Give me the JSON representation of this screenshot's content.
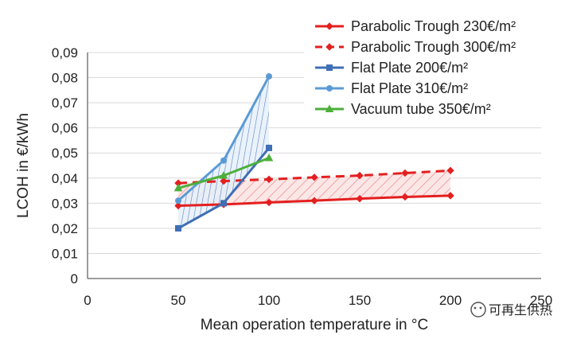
{
  "chart_data": {
    "type": "line",
    "title": "",
    "xlabel": "Mean operation temperature in °C",
    "ylabel": "LCOH in €/kWh",
    "xlim": [
      0,
      250
    ],
    "ylim": [
      0,
      0.09
    ],
    "x_ticks": [
      "0",
      "50",
      "100",
      "150",
      "200",
      "250"
    ],
    "y_ticks": [
      "0",
      "0,01",
      "0,02",
      "0,03",
      "0,04",
      "0,05",
      "0,06",
      "0,07",
      "0,08",
      "0,09"
    ],
    "grid": true,
    "legend_position": "top-right",
    "series": [
      {
        "name": "Parabolic Trough 230€/m²",
        "color": "#e41f1f",
        "dash": "solid",
        "marker": "diamond",
        "x": [
          50,
          75,
          100,
          125,
          150,
          175,
          200
        ],
        "y": [
          0.029,
          0.0295,
          0.0303,
          0.031,
          0.0318,
          0.0325,
          0.033
        ]
      },
      {
        "name": "Parabolic Trough 300€/m²",
        "color": "#e41f1f",
        "dash": "dashed",
        "marker": "diamond",
        "x": [
          50,
          75,
          100,
          125,
          150,
          175,
          200
        ],
        "y": [
          0.038,
          0.0388,
          0.0395,
          0.0403,
          0.041,
          0.042,
          0.043
        ]
      },
      {
        "name": "Flat Plate 200€/m²",
        "color": "#3f6fb5",
        "dash": "solid",
        "marker": "square",
        "x": [
          50,
          75,
          100
        ],
        "y": [
          0.02,
          0.03,
          0.052
        ]
      },
      {
        "name": "Flat Plate 310€/m²",
        "color": "#5b9bd5",
        "dash": "solid",
        "marker": "circle",
        "x": [
          50,
          75,
          100
        ],
        "y": [
          0.031,
          0.047,
          0.0805
        ]
      },
      {
        "name": "Vacuum tube 350€/m²",
        "color": "#4caf3a",
        "dash": "solid",
        "marker": "triangle",
        "x": [
          50,
          75,
          100
        ],
        "y": [
          0.036,
          0.041,
          0.048
        ]
      }
    ],
    "shaded_bands": [
      {
        "lower": "Parabolic Trough 230€/m²",
        "upper": "Parabolic Trough 300€/m²",
        "color": "#e41f1f"
      },
      {
        "lower": "Flat Plate 200€/m²",
        "upper": "Flat Plate 310€/m²",
        "color": "#3f6fb5"
      }
    ]
  },
  "watermark": "可再生供热"
}
